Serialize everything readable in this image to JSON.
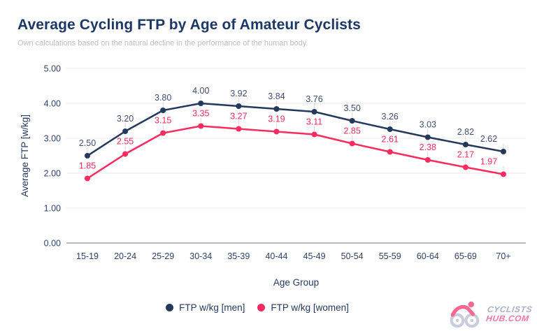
{
  "header": {
    "title": "Average Cycling FTP by Age of Amateur Cyclists",
    "subtitle": "Own calculations based on the natural decline in the performance of the human body."
  },
  "chart_data": {
    "type": "line",
    "title": "Average Cycling FTP by Age of Amateur Cyclists",
    "subtitle": "Own calculations based on the natural decline in the performance of the human body.",
    "categories": [
      "15-19",
      "20-24",
      "25-29",
      "30-34",
      "35-39",
      "40-44",
      "45-49",
      "50-54",
      "55-59",
      "60-64",
      "65-69",
      "70+"
    ],
    "series": [
      {
        "name": "FTP w/kg [men]",
        "color": "#24395c",
        "label_color": "#3d4f72",
        "values": [
          2.5,
          3.2,
          3.8,
          4.0,
          3.92,
          3.84,
          3.76,
          3.5,
          3.26,
          3.03,
          2.82,
          2.62
        ]
      },
      {
        "name": "FTP w/kg [women]",
        "color": "#fa2b5e",
        "label_color": "#fa2b5e",
        "values": [
          1.85,
          2.55,
          3.15,
          3.35,
          3.27,
          3.19,
          3.11,
          2.85,
          2.61,
          2.38,
          2.17,
          1.97
        ]
      }
    ],
    "xlabel": "Age Group",
    "ylabel": "Average FTP [w/kg]",
    "ylim": [
      0,
      5
    ],
    "ytick_step": 1,
    "ytick_labels": [
      "0.00",
      "1.00",
      "2.00",
      "3.00",
      "4.00",
      "5.00"
    ],
    "grid": "horizontal",
    "legend_position": "bottom",
    "value_labels": true,
    "colors": {
      "title": "#1d3866",
      "subtitle": "#b9bdc5",
      "gridline": "#e6e8ec",
      "zero_axis": "#6b7486",
      "leader_line": "#d8dbe2",
      "tick_text": "#2d4269"
    }
  },
  "logo": {
    "line1": "CYCLISTS",
    "line2": "HUB.COM",
    "colors": {
      "line1": "#a7b1c3",
      "line2": "#f678a0",
      "wheels": "#c7cdda",
      "rider": "#f9688f"
    }
  }
}
